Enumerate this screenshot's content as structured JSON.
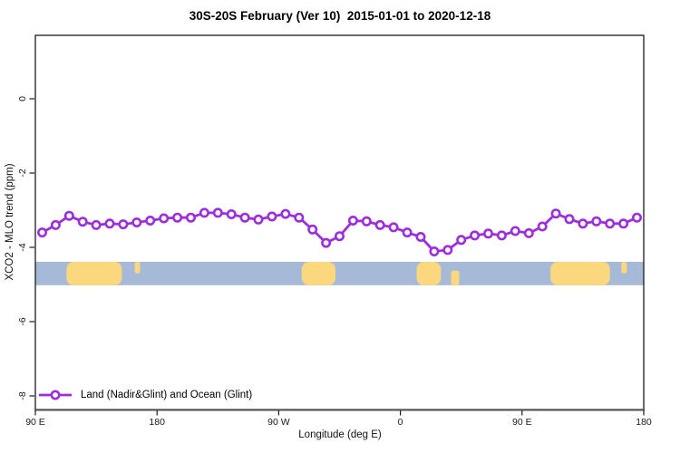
{
  "chart_data": {
    "type": "line",
    "title": "30S-20S February (Ver 10)  2015-01-01 to 2020-12-18",
    "xlabel": "Longitude (deg E)",
    "ylabel": "XCO2 - MLO trend (ppm)",
    "xlim": [
      90,
      540
    ],
    "ylim": [
      -8.4,
      1.7
    ],
    "grid": false,
    "legend_position": "bottom-left-inside",
    "x_ticks": [
      {
        "lon": 90,
        "label": "90 E"
      },
      {
        "lon": 180,
        "label": "180"
      },
      {
        "lon": 270,
        "label": "90 W"
      },
      {
        "lon": 360,
        "label": "0"
      },
      {
        "lon": 450,
        "label": "90 E"
      },
      {
        "lon": 540,
        "label": "180"
      }
    ],
    "y_ticks": [
      {
        "value": 0,
        "label": "0"
      },
      {
        "value": -2,
        "label": "-2"
      },
      {
        "value": -4,
        "label": "-4"
      },
      {
        "value": -6,
        "label": "-6"
      },
      {
        "value": -8,
        "label": "-8"
      }
    ],
    "series": [
      {
        "name": "Land (Nadir&Glint) and Ocean (Glint)",
        "color": "#9B2FD9",
        "marker": "open-circle",
        "x": [
          95,
          105,
          115,
          125,
          135,
          145,
          155,
          165,
          175,
          185,
          195,
          205,
          215,
          225,
          235,
          245,
          255,
          265,
          275,
          285,
          295,
          305,
          315,
          325,
          335,
          345,
          355,
          365,
          375,
          385,
          395,
          405,
          415,
          425,
          435,
          445,
          455,
          465,
          475,
          485,
          495,
          505,
          515,
          525,
          535
        ],
        "values": [
          -3.6,
          -3.4,
          -3.15,
          -3.31,
          -3.4,
          -3.36,
          -3.38,
          -3.33,
          -3.28,
          -3.22,
          -3.2,
          -3.2,
          -3.07,
          -3.07,
          -3.11,
          -3.2,
          -3.25,
          -3.17,
          -3.1,
          -3.2,
          -3.52,
          -3.88,
          -3.7,
          -3.28,
          -3.3,
          -3.4,
          -3.46,
          -3.6,
          -3.72,
          -4.11,
          -4.07,
          -3.8,
          -3.68,
          -3.63,
          -3.68,
          -3.56,
          -3.62,
          -3.44,
          -3.09,
          -3.24,
          -3.36,
          -3.3,
          -3.36,
          -3.36,
          -3.2
        ]
      }
    ],
    "map_band": {
      "description": "land-ocean strip along 30S-20S",
      "y_top": -4.39,
      "y_bottom": -5.02,
      "ocean_color": "#A6BAD8",
      "land_color": "#FBD77D",
      "land_segments": [
        {
          "name": "australia-west",
          "lon_start": 113,
          "lon_end": 154,
          "extent": "full"
        },
        {
          "name": "new-caledonia-west",
          "lon_start": 163.5,
          "lon_end": 167.5,
          "extent": "top"
        },
        {
          "name": "south-america",
          "lon_start": 287,
          "lon_end": 312,
          "extent": "full"
        },
        {
          "name": "africa",
          "lon_start": 372,
          "lon_end": 390,
          "extent": "full"
        },
        {
          "name": "madagascar",
          "lon_start": 397.5,
          "lon_end": 403.5,
          "extent": "bottom"
        },
        {
          "name": "australia-east",
          "lon_start": 471,
          "lon_end": 515,
          "extent": "full"
        },
        {
          "name": "new-caledonia-east",
          "lon_start": 523.5,
          "lon_end": 527.5,
          "extent": "top"
        }
      ]
    }
  }
}
